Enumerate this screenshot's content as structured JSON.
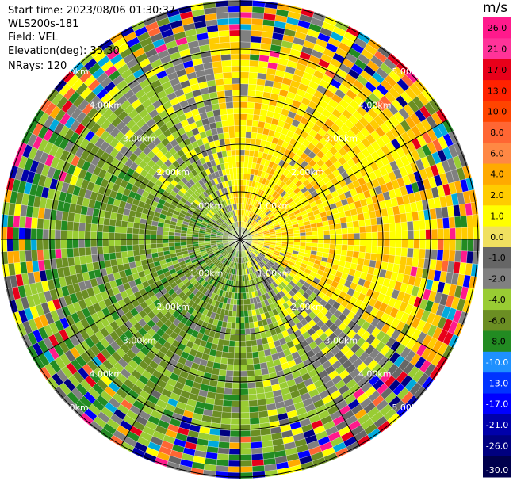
{
  "info": {
    "start_time": "Start time: 2023/08/06 01:30:37",
    "instrument": "WLS200s-181",
    "field": "Field: VEL",
    "elevation": "Elevation(deg): 35.30",
    "nrays": "NRays: 120"
  },
  "colorbar": {
    "unit": "m/s",
    "ticks": [
      "26.0",
      "21.0",
      "17.0",
      "13.0",
      "10.0",
      "8.0",
      "6.0",
      "4.0",
      "2.0",
      "1.0",
      "0.0",
      "-1.0",
      "-2.0",
      "-4.0",
      "-6.0",
      "-8.0",
      "-10.0",
      "-13.0",
      "-17.0",
      "-21.0",
      "-26.0",
      "-30.0"
    ],
    "colors": [
      "#ff1a8c",
      "#ff3399",
      "#e8001a",
      "#ff2200",
      "#ff4400",
      "#ff6633",
      "#ff8844",
      "#ffaa00",
      "#ffcc00",
      "#ffff00",
      "#f0e060",
      "#666666",
      "#808080",
      "#99cc33",
      "#6b8e23",
      "#228b22",
      "#1e90ff",
      "#0033ff",
      "#0000ff",
      "#0000aa",
      "#000080",
      "#00004d"
    ]
  },
  "chart_data": {
    "type": "heatmap",
    "projection": "polar (PPI)",
    "field": "VEL",
    "units": "m/s",
    "nrays": 120,
    "range_rings": [
      {
        "label": "1.00km"
      },
      {
        "label": "2.00km"
      },
      {
        "label": "3.00km"
      },
      {
        "label": "4.00km"
      },
      {
        "label": "5.00km"
      }
    ],
    "colorbar_range": [
      -30.0,
      30.0
    ],
    "pattern_notes": "Velocity field: positive (yellow/orange) values dominate the north-east and east sectors, negative (olive/green) values dominate the west, south-west and south; outer gates are noisy with mixed colors."
  }
}
